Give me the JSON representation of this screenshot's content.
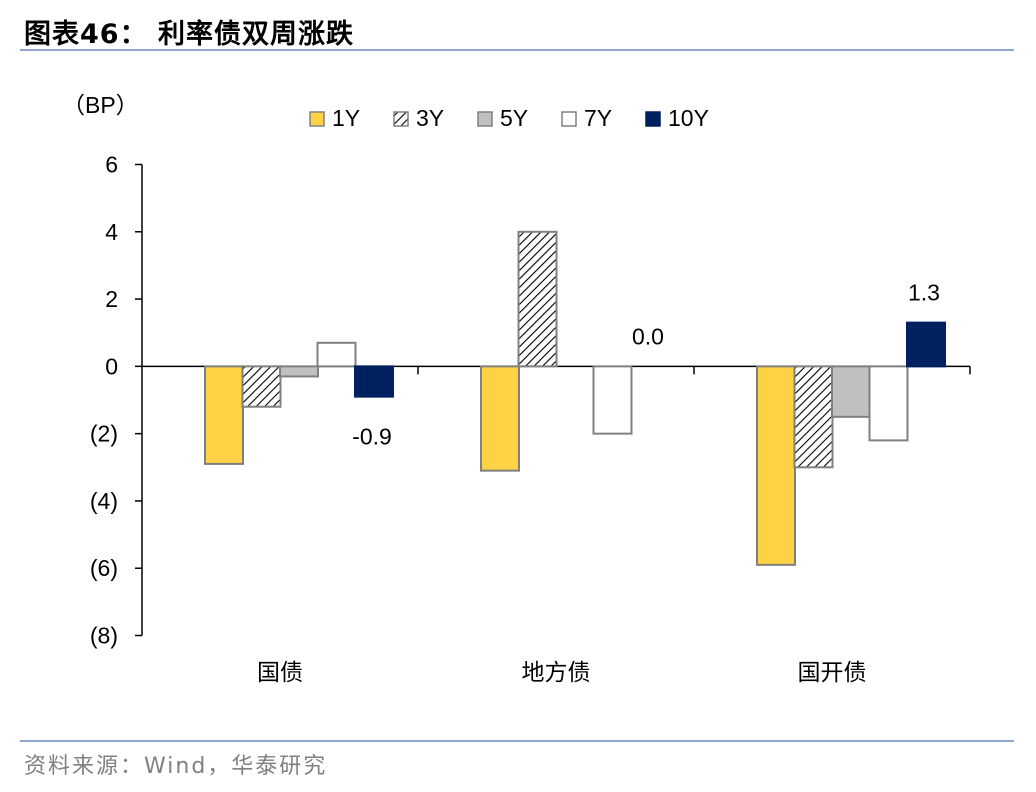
{
  "header": {
    "title": "图表46：  利率债双周涨跌"
  },
  "footer": {
    "source": "资料来源：Wind，华泰研究"
  },
  "colors": {
    "y1": "#FFD144",
    "y5": "#C0C0C0",
    "y10": "#002060",
    "edge": "#808080",
    "rule": "#8EA7CF"
  },
  "chart_data": {
    "type": "bar",
    "title": "利率债双周涨跌",
    "ylabel": "（BP）",
    "xlabel": "",
    "ylim": [
      -8,
      6
    ],
    "yticks": [
      6,
      4,
      2,
      0,
      -2,
      -4,
      -6,
      -8
    ],
    "ytick_labels": [
      "6",
      "4",
      "2",
      "0",
      "(2)",
      "(4)",
      "(6)",
      "(8)"
    ],
    "categories": [
      "国债",
      "地方债",
      "国开债"
    ],
    "legend_position": "top-center",
    "series": [
      {
        "name": "1Y",
        "key": "y1",
        "values": [
          -2.9,
          -3.1,
          -5.9
        ]
      },
      {
        "name": "3Y",
        "key": "y3",
        "values": [
          -1.2,
          4.0,
          -3.0
        ]
      },
      {
        "name": "5Y",
        "key": "y5",
        "values": [
          -0.3,
          0.0,
          -1.5
        ]
      },
      {
        "name": "7Y",
        "key": "y7",
        "values": [
          0.7,
          -2.0,
          -2.2
        ]
      },
      {
        "name": "10Y",
        "key": "y10",
        "values": [
          -0.9,
          0.0,
          1.3
        ]
      }
    ],
    "data_labels": [
      {
        "series": "10Y",
        "category": "国债",
        "text": "-0.9"
      },
      {
        "series": "10Y",
        "category": "地方债",
        "text": "0.0"
      },
      {
        "series": "10Y",
        "category": "国开债",
        "text": "1.3"
      }
    ]
  }
}
